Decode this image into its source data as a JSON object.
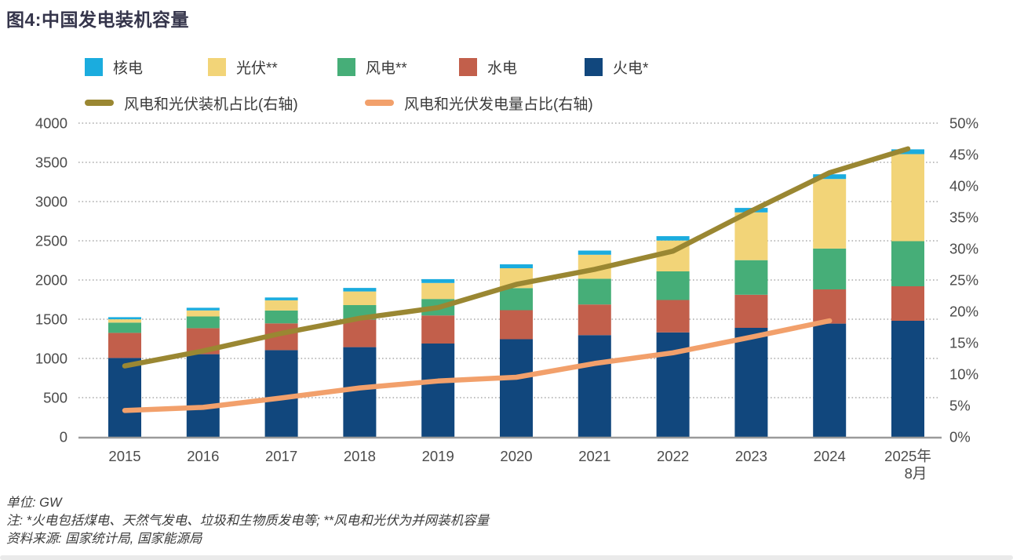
{
  "title": "图4:中国发电装机容量",
  "legend": {
    "bars": [
      {
        "label": "核电",
        "color": "#1BACDE"
      },
      {
        "label": "光伏**",
        "color": "#F2D478"
      },
      {
        "label": "风电**",
        "color": "#46AE78"
      },
      {
        "label": "水电",
        "color": "#C25F4B"
      },
      {
        "label": "火电*",
        "color": "#11477D"
      }
    ],
    "lines": [
      {
        "label": "风电和光伏装机占比(右轴)",
        "color": "#9A8732"
      },
      {
        "label": "风电和光伏发电量占比(右轴)",
        "color": "#F2A06B"
      }
    ]
  },
  "chart_data": {
    "type": "bar",
    "subtype": "stacked-bars-with-dual-axis-lines",
    "title": "中国发电装机容量",
    "unit": "GW",
    "categories": [
      "2015",
      "2016",
      "2017",
      "2018",
      "2019",
      "2020",
      "2021",
      "2022",
      "2023",
      "2024",
      "2025年8月"
    ],
    "bar_series": [
      {
        "name": "火电*",
        "color": "#11477D",
        "values": [
          1006,
          1054,
          1106,
          1144,
          1190,
          1245,
          1297,
          1332,
          1390,
          1444,
          1480
        ]
      },
      {
        "name": "水电",
        "color": "#C25F4B",
        "values": [
          320,
          332,
          341,
          352,
          358,
          370,
          391,
          413,
          422,
          436,
          440
        ]
      },
      {
        "name": "风电**",
        "color": "#46AE78",
        "values": [
          131,
          149,
          164,
          184,
          210,
          282,
          328,
          365,
          441,
          521,
          575
        ]
      },
      {
        "name": "光伏**",
        "color": "#F2D478",
        "values": [
          42,
          77,
          130,
          174,
          204,
          253,
          306,
          393,
          609,
          887,
          1110
        ]
      },
      {
        "name": "核电",
        "color": "#1BACDE",
        "values": [
          27,
          34,
          36,
          45,
          49,
          50,
          53,
          56,
          57,
          60,
          61
        ]
      }
    ],
    "line_series": [
      {
        "name": "风电和光伏装机占比(右轴)",
        "color": "#9A8732",
        "axis": "right",
        "values_pct": [
          11.3,
          13.7,
          16.5,
          18.9,
          20.6,
          24.3,
          26.7,
          29.6,
          36.0,
          42.1,
          45.9
        ]
      },
      {
        "name": "风电和光伏发电量占比(右轴)",
        "color": "#F2A06B",
        "axis": "right",
        "values_pct": [
          4.2,
          4.7,
          6.2,
          7.8,
          8.9,
          9.5,
          11.7,
          13.4,
          15.9,
          18.5
        ]
      }
    ],
    "left_axis": {
      "min": 0,
      "max": 4000,
      "step": 500,
      "labels": [
        "0",
        "500",
        "1000",
        "1500",
        "2000",
        "2500",
        "3000",
        "3500",
        "4000"
      ]
    },
    "right_axis": {
      "min": 0,
      "max": 50,
      "step": 5,
      "labels": [
        "0%",
        "5%",
        "10%",
        "15%",
        "20%",
        "25%",
        "30%",
        "35%",
        "40%",
        "45%",
        "50%"
      ]
    },
    "grid": {
      "horizontal": "dotted",
      "zero_line": "solid"
    },
    "legend_position": "top"
  },
  "notes": {
    "unit": "单位: GW",
    "note": "注: *火电包括煤电、天然气发电、垃圾和生物质发电等; **风电和光伏为并网装机容量",
    "source": "资料来源: 国家统计局, 国家能源局"
  }
}
